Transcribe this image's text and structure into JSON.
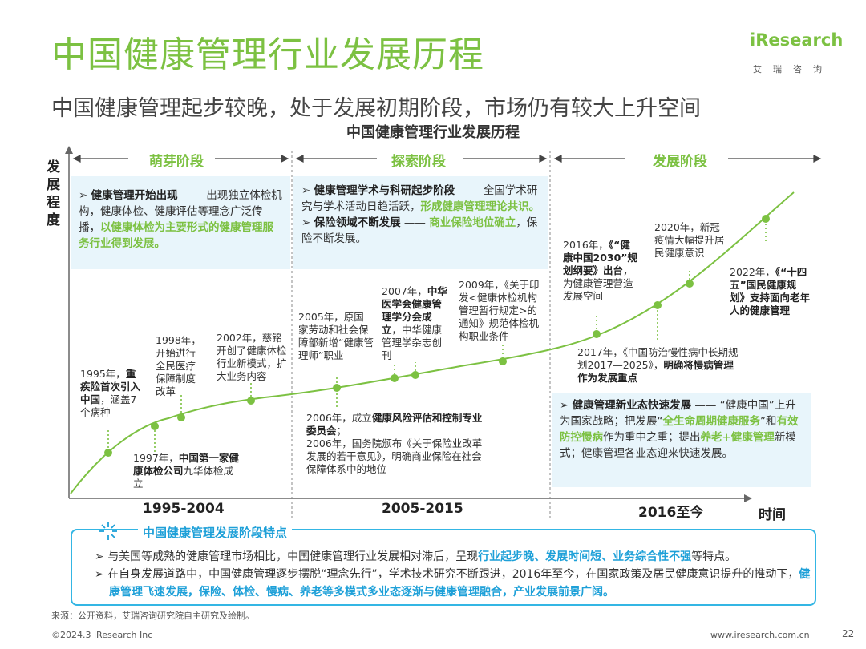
{
  "title": "中国健康管理行业发展历程",
  "subtitle": "中国健康管理起步较晚，处于发展初期阶段，市场仍有较大上升空间",
  "chart_title": "中国健康管理行业发展历程",
  "logo": {
    "text": "iResearch",
    "sub": "艾瑞咨询"
  },
  "axes": {
    "y_label": "发展程度",
    "x_label": "时间"
  },
  "stages": [
    {
      "label": "萌芽阶段",
      "period": "1995-2004",
      "summary": {
        "lead": "健康管理开始出现",
        "dash": " —— ",
        "body": "出现独立体检机构，健康体检、健康评估等理念广泛传播，",
        "highlight": "以健康体检为主要形式的健康管理服务行业得到发展。"
      }
    },
    {
      "label": "探索阶段",
      "period": "2005-2015",
      "summary1": {
        "lead": "健康管理学术与科研起步阶段",
        "dash": " —— ",
        "body": "全国学术研究与学术活动日趋活跃，",
        "highlight": "形成健康管理理论共识。"
      },
      "summary2": {
        "lead": "保险领域不断发展",
        "dash": " —— ",
        "highlight": "商业保险地位确立",
        "body": "，保险不断发展。"
      }
    },
    {
      "label": "发展阶段",
      "period": "2016至今",
      "summary": {
        "lead": "健康管理新业态快速发展",
        "dash": " —— ",
        "p1": "“健康中国”上升为国家战略；把发展“",
        "h1": "全生命周期健康服务",
        "p2": "”和",
        "h2": "有效防控慢病",
        "p3": "作为重中之重；提出",
        "h3": "养老+健康管理",
        "p4": "新模式；健康管理各业态迎来快速发展。"
      }
    }
  ],
  "milestones": {
    "m1995": {
      "a": "1995年，",
      "b": "重疾险首次引入中国",
      "c": "，涵盖7个病种"
    },
    "m1997": {
      "a": "1997年，",
      "b": "中国第一家健康体检公司",
      "c": "九华体检成立"
    },
    "m1998": {
      "a": "1998年，开始进行全民医疗保障制度改革"
    },
    "m2002": {
      "a": "2002年，慈铭开创了健康体检行业新模式，扩大业务内容"
    },
    "m2005": {
      "a": "2005年，原国家劳动和社会保障部新增“健康管理师”职业"
    },
    "m2006": {
      "a": "2006年，成立",
      "b": "健康风险评估和控制专业委员会",
      "c": "；",
      "d": "2006年，国务院颁布《关于保险业改革发展的若干意见》，明确商业保险在社会保障体系中的地位"
    },
    "m2007": {
      "a": "2007年，",
      "b": "中华医学会健康管理学分会成立",
      "c": "，中华健康管理学杂志创刊"
    },
    "m2009": {
      "a": "2009年，《关于印发<健康体检机构管理暂行规定>的通知》规范体检机构职业条件"
    },
    "m2016": {
      "a": "2016年，",
      "b": "《“健康中国2030”规划纲要》出台",
      "c": "，为健康管理营造发展空间"
    },
    "m2017": {
      "a": "2017年，《中国防治慢性病中长期规划2017—2025》，",
      "b": "明确将慢病管理作为发展重点"
    },
    "m2020": {
      "a": "2020年，新冠疫情大幅提升居民健康意识"
    },
    "m2022": {
      "a": "2022年，",
      "b": "《“十四五”国民健康规划》支持面向老年人的健康管理"
    }
  },
  "features": {
    "title": "中国健康管理发展阶段特点",
    "item1": {
      "p1": "与美国等成熟的健康管理市场相比，中国健康管理行业发展相对滞后，呈现",
      "h1": "行业起步晚、发展时间短、业务综合性不强",
      "p2": "等特点。"
    },
    "item2": {
      "p1": "在自身发展道路中，中国健康管理逐步摆脱“理念先行”，学术技术研究不断跟进，2016年至今，在国家政策及居民健康意识提升的推动下，",
      "h1": "健康管理飞速发展，保险、体检、慢病、养老等多模式多业态逐渐与健康管理融合，产业发展前景广阔。"
    }
  },
  "colors": {
    "green": "#7cc142",
    "blue": "#1ea0d8",
    "box_bg": "#e8f5fb"
  },
  "footer": {
    "source": "来源：公开资料，艾瑞咨询研究院自主研究及绘制。",
    "copyright": "©2024.3 iResearch Inc",
    "website": "www.iresearch.com.cn",
    "page": "22"
  }
}
